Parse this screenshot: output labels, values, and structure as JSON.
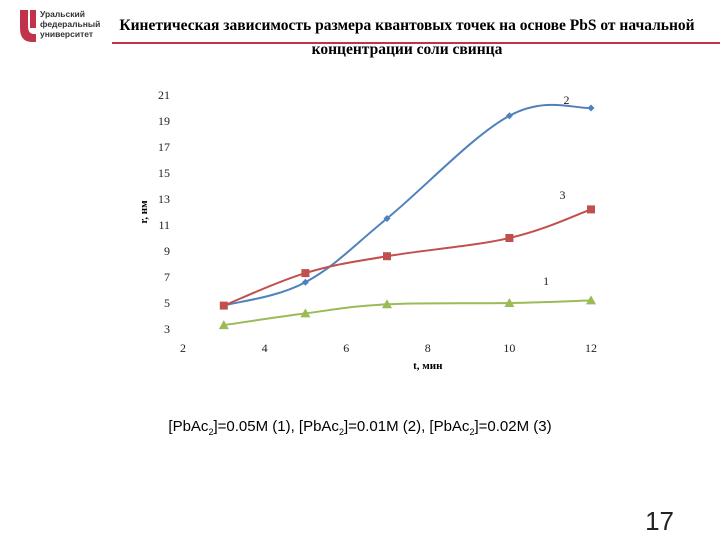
{
  "header": {
    "logo_lines": [
      "Уральский",
      "федеральный",
      "университет"
    ],
    "title": "Кинетическая зависимость размера квантовых точек на основе PbS от начальной концентрации соли свинца",
    "brand_color": "#c0334a"
  },
  "caption": {
    "part1": "[PbAc",
    "sub1": "2",
    "part2": "]=0.05M (1), [PbAc",
    "sub2": "2",
    "part3": "]=0.01M (2), [PbAc",
    "sub3": "2",
    "part4": "]=0.02M (3)"
  },
  "page_number": "17",
  "chart_data": {
    "type": "line",
    "title": "",
    "xlabel": "t, мин",
    "ylabel": "r, нм",
    "xlim": [
      2,
      12
    ],
    "ylim": [
      3,
      21
    ],
    "x_ticks": [
      2,
      4,
      6,
      8,
      10,
      12
    ],
    "y_ticks": [
      3,
      5,
      7,
      9,
      11,
      13,
      15,
      17,
      19,
      21
    ],
    "grid": false,
    "series": [
      {
        "name": "1",
        "color": "#9bbb59",
        "marker": "triangle",
        "x": [
          3,
          5,
          7,
          10,
          12
        ],
        "y": [
          3.3,
          4.2,
          4.9,
          5.0,
          5.2
        ]
      },
      {
        "name": "2",
        "color": "#4f81bd",
        "marker": "diamond",
        "x": [
          3,
          5,
          7,
          10,
          12
        ],
        "y": [
          4.8,
          6.6,
          11.5,
          19.4,
          20.0
        ]
      },
      {
        "name": "3",
        "color": "#c0504d",
        "marker": "square",
        "x": [
          3,
          5,
          7,
          10,
          12
        ],
        "y": [
          4.8,
          7.3,
          8.6,
          10.0,
          12.2
        ]
      }
    ]
  }
}
